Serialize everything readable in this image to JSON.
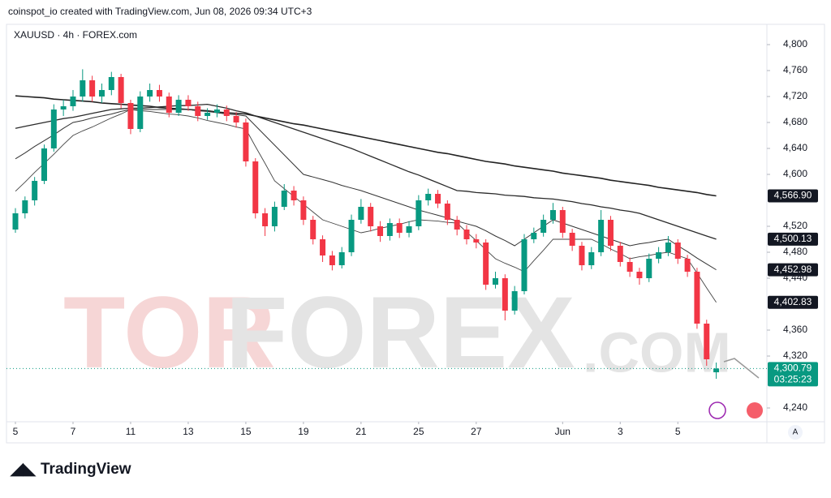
{
  "header": {
    "credit": "coinspot_io created with TradingView.com, Jun 08, 2026 09:34 UTC+3",
    "symbol": "XAUUSD · 4h · FOREX.com",
    "brand": "TradingView",
    "auto_button": "A"
  },
  "watermark": [
    "TOR",
    "FOREX",
    ".COM"
  ],
  "chart_data": {
    "type": "candlestick",
    "categories": [
      "5",
      null,
      null,
      null,
      null,
      null,
      "7",
      null,
      null,
      null,
      null,
      null,
      "11",
      null,
      null,
      null,
      null,
      null,
      "13",
      null,
      null,
      null,
      null,
      null,
      "15",
      null,
      null,
      null,
      null,
      null,
      "19",
      null,
      null,
      null,
      null,
      null,
      "21",
      null,
      null,
      null,
      null,
      null,
      "25",
      null,
      null,
      null,
      null,
      null,
      "27",
      null,
      null,
      null,
      null,
      null,
      null,
      null,
      null,
      "Jun",
      null,
      null,
      null,
      null,
      null,
      "3",
      null,
      null,
      null,
      null,
      null,
      "5",
      null,
      null,
      null,
      null
    ],
    "open": [
      4515,
      4540,
      4560,
      4590,
      4640,
      4700,
      4705,
      4720,
      4745,
      4720,
      4730,
      4750,
      4710,
      4670,
      4720,
      4730,
      4720,
      4695,
      4715,
      4705,
      4690,
      4695,
      4700,
      4690,
      4680,
      4620,
      4540,
      4520,
      4550,
      4575,
      4560,
      4530,
      4500,
      4475,
      4460,
      4480,
      4530,
      4550,
      4520,
      4505,
      4525,
      4510,
      4520,
      4560,
      4570,
      4555,
      4530,
      4515,
      4500,
      4495,
      4430,
      4440,
      4390,
      4420,
      4500,
      4510,
      4530,
      4545,
      4510,
      4490,
      4460,
      4480,
      4530,
      4490,
      4465,
      4450,
      4440,
      4470,
      4480,
      4495,
      4470,
      4450,
      4370,
      4295
    ],
    "high": [
      4548,
      4566,
      4596,
      4646,
      4708,
      4715,
      4730,
      4762,
      4752,
      4740,
      4758,
      4755,
      4715,
      4728,
      4740,
      4738,
      4726,
      4722,
      4722,
      4712,
      4702,
      4708,
      4706,
      4696,
      4686,
      4625,
      4548,
      4558,
      4585,
      4582,
      4566,
      4536,
      4506,
      4482,
      4488,
      4538,
      4562,
      4556,
      4528,
      4532,
      4532,
      4528,
      4568,
      4578,
      4576,
      4560,
      4536,
      4522,
      4508,
      4500,
      4450,
      4446,
      4428,
      4508,
      4518,
      4538,
      4556,
      4550,
      4516,
      4496,
      4488,
      4545,
      4536,
      4496,
      4472,
      4456,
      4478,
      4488,
      4505,
      4500,
      4476,
      4456,
      4376,
      4310
    ],
    "low": [
      4510,
      4532,
      4552,
      4585,
      4635,
      4690,
      4698,
      4712,
      4712,
      4710,
      4722,
      4702,
      4662,
      4665,
      4712,
      4712,
      4688,
      4690,
      4698,
      4682,
      4684,
      4688,
      4682,
      4672,
      4612,
      4532,
      4505,
      4512,
      4545,
      4552,
      4522,
      4492,
      4465,
      4452,
      4455,
      4474,
      4524,
      4512,
      4496,
      4498,
      4502,
      4503,
      4514,
      4552,
      4548,
      4522,
      4506,
      4492,
      4486,
      4422,
      4424,
      4375,
      4384,
      4415,
      4494,
      4504,
      4524,
      4502,
      4482,
      4452,
      4454,
      4474,
      4482,
      4458,
      4442,
      4430,
      4434,
      4463,
      4474,
      4462,
      4442,
      4362,
      4305,
      4285
    ],
    "close": [
      4540,
      4560,
      4590,
      4640,
      4700,
      4705,
      4720,
      4745,
      4720,
      4730,
      4750,
      4710,
      4670,
      4720,
      4730,
      4720,
      4695,
      4715,
      4705,
      4690,
      4695,
      4700,
      4690,
      4680,
      4620,
      4540,
      4520,
      4550,
      4575,
      4560,
      4530,
      4500,
      4475,
      4460,
      4480,
      4530,
      4550,
      4520,
      4505,
      4525,
      4510,
      4520,
      4560,
      4570,
      4555,
      4530,
      4515,
      4500,
      4495,
      4430,
      4440,
      4390,
      4420,
      4500,
      4510,
      4530,
      4545,
      4510,
      4490,
      4460,
      4480,
      4530,
      4490,
      4465,
      4450,
      4440,
      4470,
      4480,
      4495,
      4470,
      4450,
      4370,
      4315,
      4300.79
    ],
    "up_color": "#089981",
    "down_color": "#f23645",
    "last_price_label": "4,300.79",
    "countdown": "03:25:23",
    "lines": [
      {
        "color": "#222222",
        "width": 1.6,
        "value_label": "4,566.90",
        "values": [
          4721,
          4720,
          4719,
          4718,
          4716,
          4715,
          4714,
          4713,
          4712,
          4710,
          4709,
          4708,
          4707,
          4706,
          4705,
          4703,
          4702,
          4701,
          4700,
          4699,
          4698,
          4696,
          4695,
          4694,
          4693,
          4690,
          4687,
          4684,
          4681,
          4678,
          4676,
          4673,
          4670,
          4667,
          4664,
          4661,
          4658,
          4655,
          4652,
          4649,
          4646,
          4643,
          4640,
          4637,
          4634,
          4632,
          4629,
          4626,
          4623,
          4620,
          4618,
          4616,
          4613,
          4611,
          4609,
          4607,
          4605,
          4602,
          4600,
          4598,
          4596,
          4594,
          4591,
          4589,
          4587,
          4585,
          4583,
          4580,
          4578,
          4576,
          4574,
          4572,
          4569,
          4566.9
        ]
      },
      {
        "color": "#2a2a2a",
        "width": 1.3,
        "value_label": "4,500.13",
        "values": [
          4671,
          4674,
          4677,
          4680,
          4683,
          4686,
          4688,
          4691,
          4694,
          4697,
          4700,
          4701,
          4702,
          4702,
          4703,
          4704,
          4705,
          4706,
          4706,
          4707,
          4708,
          4705,
          4702,
          4698,
          4695,
          4690,
          4685,
          4680,
          4675,
          4670,
          4665,
          4660,
          4655,
          4650,
          4645,
          4640,
          4634,
          4628,
          4622,
          4616,
          4610,
          4604,
          4599,
          4593,
          4587,
          4581,
          4575,
          4574,
          4572,
          4571,
          4570,
          4568,
          4567,
          4566,
          4564,
          4563,
          4562,
          4560,
          4558,
          4555,
          4553,
          4550,
          4548,
          4545,
          4543,
          4540,
          4535,
          4530,
          4525,
          4520,
          4515,
          4510,
          4505,
          4500.13
        ]
      },
      {
        "color": "#333333",
        "width": 1,
        "value_label": "4,452.98",
        "values": [
          4624,
          4633,
          4643,
          4652,
          4661,
          4671,
          4680,
          4683,
          4687,
          4690,
          4693,
          4697,
          4700,
          4700,
          4700,
          4700,
          4700,
          4700,
          4700,
          4698,
          4697,
          4695,
          4693,
          4692,
          4690,
          4675,
          4660,
          4645,
          4630,
          4615,
          4600,
          4596,
          4592,
          4588,
          4583,
          4579,
          4575,
          4570,
          4565,
          4560,
          4555,
          4550,
          4545,
          4541,
          4537,
          4533,
          4528,
          4524,
          4520,
          4513,
          4505,
          4498,
          4490,
          4500,
          4510,
          4520,
          4530,
          4525,
          4520,
          4515,
          4510,
          4505,
          4500,
          4495,
          4490,
          4493,
          4495,
          4498,
          4500,
          4490,
          4481,
          4471,
          4462,
          4452.98
        ]
      },
      {
        "color": "#444444",
        "width": 0.9,
        "value_label": "4,402.83",
        "values": [
          4574,
          4588,
          4603,
          4617,
          4631,
          4646,
          4660,
          4667,
          4673,
          4680,
          4687,
          4693,
          4700,
          4698,
          4697,
          4695,
          4693,
          4692,
          4690,
          4687,
          4683,
          4680,
          4677,
          4673,
          4670,
          4643,
          4617,
          4590,
          4578,
          4566,
          4554,
          4542,
          4530,
          4525,
          4520,
          4515,
          4510,
          4513,
          4517,
          4520,
          4523,
          4527,
          4530,
          4529,
          4528,
          4526,
          4525,
          4511,
          4498,
          4484,
          4470,
          4463,
          4457,
          4450,
          4467,
          4483,
          4500,
          4500,
          4500,
          4500,
          4500,
          4493,
          4485,
          4478,
          4470,
          4473,
          4475,
          4478,
          4480,
          4475,
          4470,
          4448,
          4425,
          4402.83
        ]
      }
    ],
    "ylim": [
      4220,
      4830
    ],
    "yticks": [
      {
        "value": 4240,
        "label": "4,240"
      },
      {
        "value": 4320,
        "label": "4,320"
      },
      {
        "value": 4360,
        "label": "4,360"
      },
      {
        "value": 4440,
        "label": "4,440"
      },
      {
        "value": 4480,
        "label": "4,480"
      },
      {
        "value": 4520,
        "label": "4,520"
      },
      {
        "value": 4600,
        "label": "4,600"
      },
      {
        "value": 4640,
        "label": "4,640"
      },
      {
        "value": 4680,
        "label": "4,680"
      },
      {
        "value": 4720,
        "label": "4,720"
      },
      {
        "value": 4760,
        "label": "4,760"
      },
      {
        "value": 4800,
        "label": "4,800"
      }
    ]
  }
}
